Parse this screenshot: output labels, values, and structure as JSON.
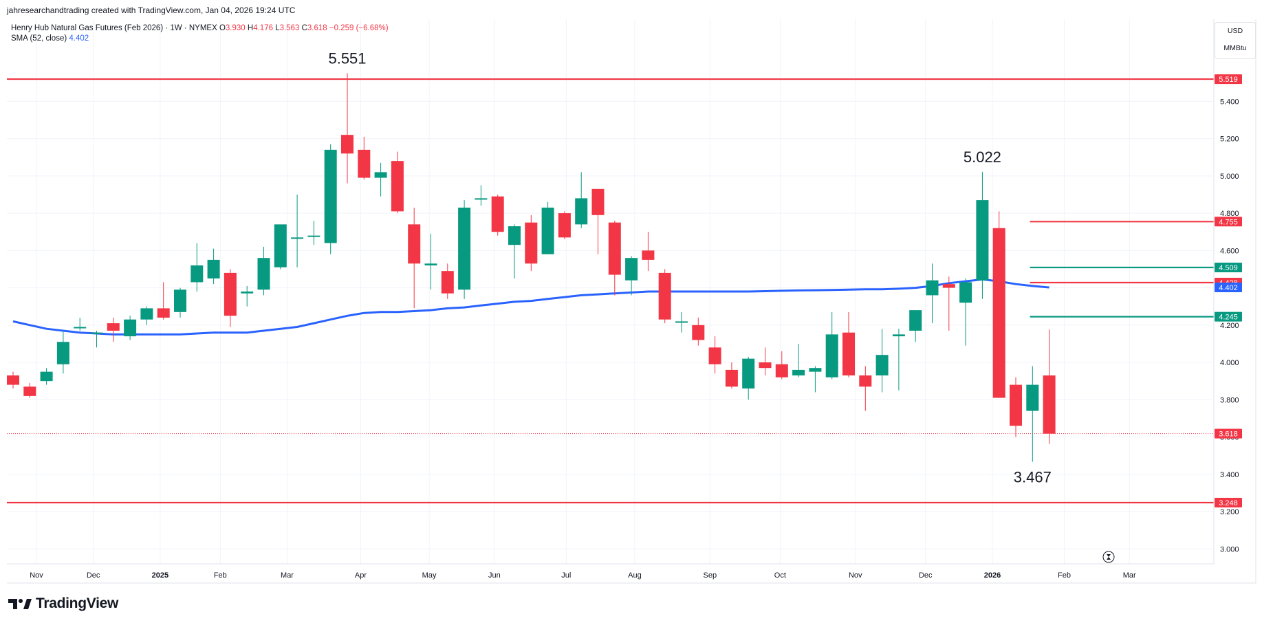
{
  "caption": "jahresearchandtrading created with TradingView.com, Jan 04, 2026 19:24 UTC",
  "legend": {
    "symbol": "Henry Hub Natural Gas Futures (Feb 2026) · 1W · NYMEX",
    "o_label": "O",
    "o_value": "3.930",
    "h_label": "H",
    "h_value": "4.176",
    "l_label": "L",
    "l_value": "3.563",
    "c_label": "C",
    "c_value": "3.618",
    "change": "−0.259 (−6.68%)",
    "sma_label": "SMA (52, close)",
    "sma_value": "4.402"
  },
  "unit": {
    "currency": "USD",
    "measure": "MMBtu"
  },
  "brand": {
    "name": "TradingView"
  },
  "colors": {
    "up": "#089981",
    "down": "#f23645",
    "sma": "#2962ff",
    "grid": "#f0f3fa",
    "text": "#131722"
  },
  "chart_data": {
    "type": "candlestick",
    "title": "Henry Hub Natural Gas Futures (Feb 2026) · 1W · NYMEX",
    "ylim": [
      2.92,
      5.84
    ],
    "y_ticks": [
      "3.000",
      "3.200",
      "3.400",
      "3.600",
      "3.800",
      "4.000",
      "4.200",
      "4.400",
      "4.600",
      "4.800",
      "5.000",
      "5.200",
      "5.400"
    ],
    "x_ticks": [
      "Nov",
      "Dec",
      "2025",
      "Feb",
      "Mar",
      "Apr",
      "May",
      "Jun",
      "Jul",
      "Aug",
      "Sep",
      "Oct",
      "Nov",
      "Dec",
      "2026",
      "Feb",
      "Mar"
    ],
    "candles": [
      {
        "o": 3.93,
        "h": 3.95,
        "l": 3.86,
        "c": 3.88
      },
      {
        "o": 3.87,
        "h": 3.89,
        "l": 3.81,
        "c": 3.82
      },
      {
        "o": 3.9,
        "h": 3.97,
        "l": 3.88,
        "c": 3.95
      },
      {
        "o": 3.99,
        "h": 4.17,
        "l": 3.94,
        "c": 4.11
      },
      {
        "o": 4.19,
        "h": 4.24,
        "l": 4.17,
        "c": 4.19
      },
      {
        "o": 4.16,
        "h": 4.17,
        "l": 4.08,
        "c": 4.16
      },
      {
        "o": 4.21,
        "h": 4.24,
        "l": 4.11,
        "c": 4.17
      },
      {
        "o": 4.14,
        "h": 4.25,
        "l": 4.12,
        "c": 4.23
      },
      {
        "o": 4.23,
        "h": 4.3,
        "l": 4.2,
        "c": 4.29
      },
      {
        "o": 4.29,
        "h": 4.43,
        "l": 4.23,
        "c": 4.24
      },
      {
        "o": 4.27,
        "h": 4.4,
        "l": 4.24,
        "c": 4.39
      },
      {
        "o": 4.43,
        "h": 4.64,
        "l": 4.38,
        "c": 4.52
      },
      {
        "o": 4.45,
        "h": 4.61,
        "l": 4.42,
        "c": 4.55
      },
      {
        "o": 4.48,
        "h": 4.5,
        "l": 4.19,
        "c": 4.25
      },
      {
        "o": 4.37,
        "h": 4.41,
        "l": 4.3,
        "c": 4.38
      },
      {
        "o": 4.39,
        "h": 4.62,
        "l": 4.36,
        "c": 4.56
      },
      {
        "o": 4.51,
        "h": 4.73,
        "l": 4.5,
        "c": 4.74
      },
      {
        "o": 4.67,
        "h": 4.9,
        "l": 4.51,
        "c": 4.67
      },
      {
        "o": 4.68,
        "h": 4.76,
        "l": 4.63,
        "c": 4.68
      },
      {
        "o": 4.64,
        "h": 5.17,
        "l": 4.58,
        "c": 5.14
      },
      {
        "o": 5.22,
        "h": 5.551,
        "l": 4.96,
        "c": 5.12
      },
      {
        "o": 5.14,
        "h": 5.21,
        "l": 4.98,
        "c": 4.99
      },
      {
        "o": 4.99,
        "h": 5.07,
        "l": 4.89,
        "c": 5.02
      },
      {
        "o": 5.08,
        "h": 5.13,
        "l": 4.8,
        "c": 4.81
      },
      {
        "o": 4.74,
        "h": 4.83,
        "l": 4.29,
        "c": 4.53
      },
      {
        "o": 4.52,
        "h": 4.69,
        "l": 4.39,
        "c": 4.53
      },
      {
        "o": 4.49,
        "h": 4.53,
        "l": 4.34,
        "c": 4.37
      },
      {
        "o": 4.39,
        "h": 4.87,
        "l": 4.34,
        "c": 4.83
      },
      {
        "o": 4.88,
        "h": 4.95,
        "l": 4.84,
        "c": 4.88
      },
      {
        "o": 4.89,
        "h": 4.9,
        "l": 4.68,
        "c": 4.7
      },
      {
        "o": 4.63,
        "h": 4.74,
        "l": 4.45,
        "c": 4.73
      },
      {
        "o": 4.75,
        "h": 4.79,
        "l": 4.49,
        "c": 4.53
      },
      {
        "o": 4.58,
        "h": 4.86,
        "l": 4.58,
        "c": 4.83
      },
      {
        "o": 4.8,
        "h": 4.81,
        "l": 4.66,
        "c": 4.67
      },
      {
        "o": 4.74,
        "h": 5.02,
        "l": 4.72,
        "c": 4.88
      },
      {
        "o": 4.93,
        "h": 4.93,
        "l": 4.58,
        "c": 4.79
      },
      {
        "o": 4.75,
        "h": 4.76,
        "l": 4.36,
        "c": 4.47
      },
      {
        "o": 4.44,
        "h": 4.57,
        "l": 4.36,
        "c": 4.56
      },
      {
        "o": 4.6,
        "h": 4.7,
        "l": 4.49,
        "c": 4.55
      },
      {
        "o": 4.48,
        "h": 4.5,
        "l": 4.21,
        "c": 4.23
      },
      {
        "o": 4.22,
        "h": 4.27,
        "l": 4.16,
        "c": 4.22
      },
      {
        "o": 4.2,
        "h": 4.24,
        "l": 4.09,
        "c": 4.12
      },
      {
        "o": 4.08,
        "h": 4.14,
        "l": 3.94,
        "c": 3.99
      },
      {
        "o": 3.96,
        "h": 4.0,
        "l": 3.86,
        "c": 3.87
      },
      {
        "o": 3.86,
        "h": 4.03,
        "l": 3.8,
        "c": 4.02
      },
      {
        "o": 4.0,
        "h": 4.08,
        "l": 3.93,
        "c": 3.97
      },
      {
        "o": 3.99,
        "h": 4.06,
        "l": 3.91,
        "c": 3.92
      },
      {
        "o": 3.93,
        "h": 4.1,
        "l": 3.92,
        "c": 3.96
      },
      {
        "o": 3.95,
        "h": 3.98,
        "l": 3.84,
        "c": 3.97
      },
      {
        "o": 3.92,
        "h": 4.27,
        "l": 3.91,
        "c": 4.15
      },
      {
        "o": 4.16,
        "h": 4.27,
        "l": 3.92,
        "c": 3.93
      },
      {
        "o": 3.93,
        "h": 3.98,
        "l": 3.74,
        "c": 3.87
      },
      {
        "o": 3.93,
        "h": 4.18,
        "l": 3.84,
        "c": 4.04
      },
      {
        "o": 4.14,
        "h": 4.18,
        "l": 3.85,
        "c": 4.15
      },
      {
        "o": 4.17,
        "h": 4.26,
        "l": 4.11,
        "c": 4.28
      },
      {
        "o": 4.36,
        "h": 4.53,
        "l": 4.21,
        "c": 4.44
      },
      {
        "o": 4.42,
        "h": 4.46,
        "l": 4.17,
        "c": 4.4
      },
      {
        "o": 4.32,
        "h": 4.45,
        "l": 4.09,
        "c": 4.43
      },
      {
        "o": 4.44,
        "h": 5.022,
        "l": 4.34,
        "c": 4.87
      },
      {
        "o": 4.72,
        "h": 4.81,
        "l": 3.81,
        "c": 3.81
      },
      {
        "o": 3.88,
        "h": 3.92,
        "l": 3.6,
        "c": 3.66
      },
      {
        "o": 3.74,
        "h": 3.98,
        "l": 3.467,
        "c": 3.88
      },
      {
        "o": 3.93,
        "h": 4.176,
        "l": 3.563,
        "c": 3.618
      }
    ],
    "sma": {
      "name": "SMA (52, close)",
      "values": [
        4.22,
        4.2,
        4.18,
        4.17,
        4.16,
        4.155,
        4.15,
        4.15,
        4.15,
        4.15,
        4.15,
        4.155,
        4.16,
        4.16,
        4.16,
        4.17,
        4.18,
        4.19,
        4.21,
        4.23,
        4.25,
        4.265,
        4.27,
        4.27,
        4.275,
        4.28,
        4.29,
        4.295,
        4.305,
        4.315,
        4.325,
        4.33,
        4.34,
        4.35,
        4.36,
        4.365,
        4.37,
        4.375,
        4.38,
        4.38,
        4.38,
        4.38,
        4.38,
        4.38,
        4.38,
        4.382,
        4.384,
        4.386,
        4.387,
        4.388,
        4.39,
        4.392,
        4.392,
        4.395,
        4.4,
        4.41,
        4.425,
        4.435,
        4.445,
        4.435,
        4.42,
        4.41,
        4.402
      ]
    },
    "levels": [
      {
        "value": 5.519,
        "label": "5.519",
        "color": "#f23645",
        "full": true
      },
      {
        "value": 4.755,
        "label": "4.755",
        "color": "#f23645",
        "full": false
      },
      {
        "value": 4.509,
        "label": "4.509",
        "color": "#089981",
        "full": false
      },
      {
        "value": 4.428,
        "label": "4.428",
        "color": "#f23645",
        "full": false
      },
      {
        "value": 4.245,
        "label": "4.245",
        "color": "#089981",
        "full": false
      },
      {
        "value": 3.248,
        "label": "3.248",
        "color": "#f23645",
        "full": true
      }
    ],
    "last_price": {
      "value": 3.618,
      "label": "3.618"
    },
    "sma_tag": {
      "value": 4.402,
      "label": "4.402"
    },
    "annotations": [
      {
        "text": "5.551",
        "candle": 20,
        "at": 5.551
      },
      {
        "text": "5.022",
        "candle": 58,
        "at": 5.022
      },
      {
        "text": "3.467",
        "candle": 61,
        "at": 3.467
      }
    ]
  }
}
